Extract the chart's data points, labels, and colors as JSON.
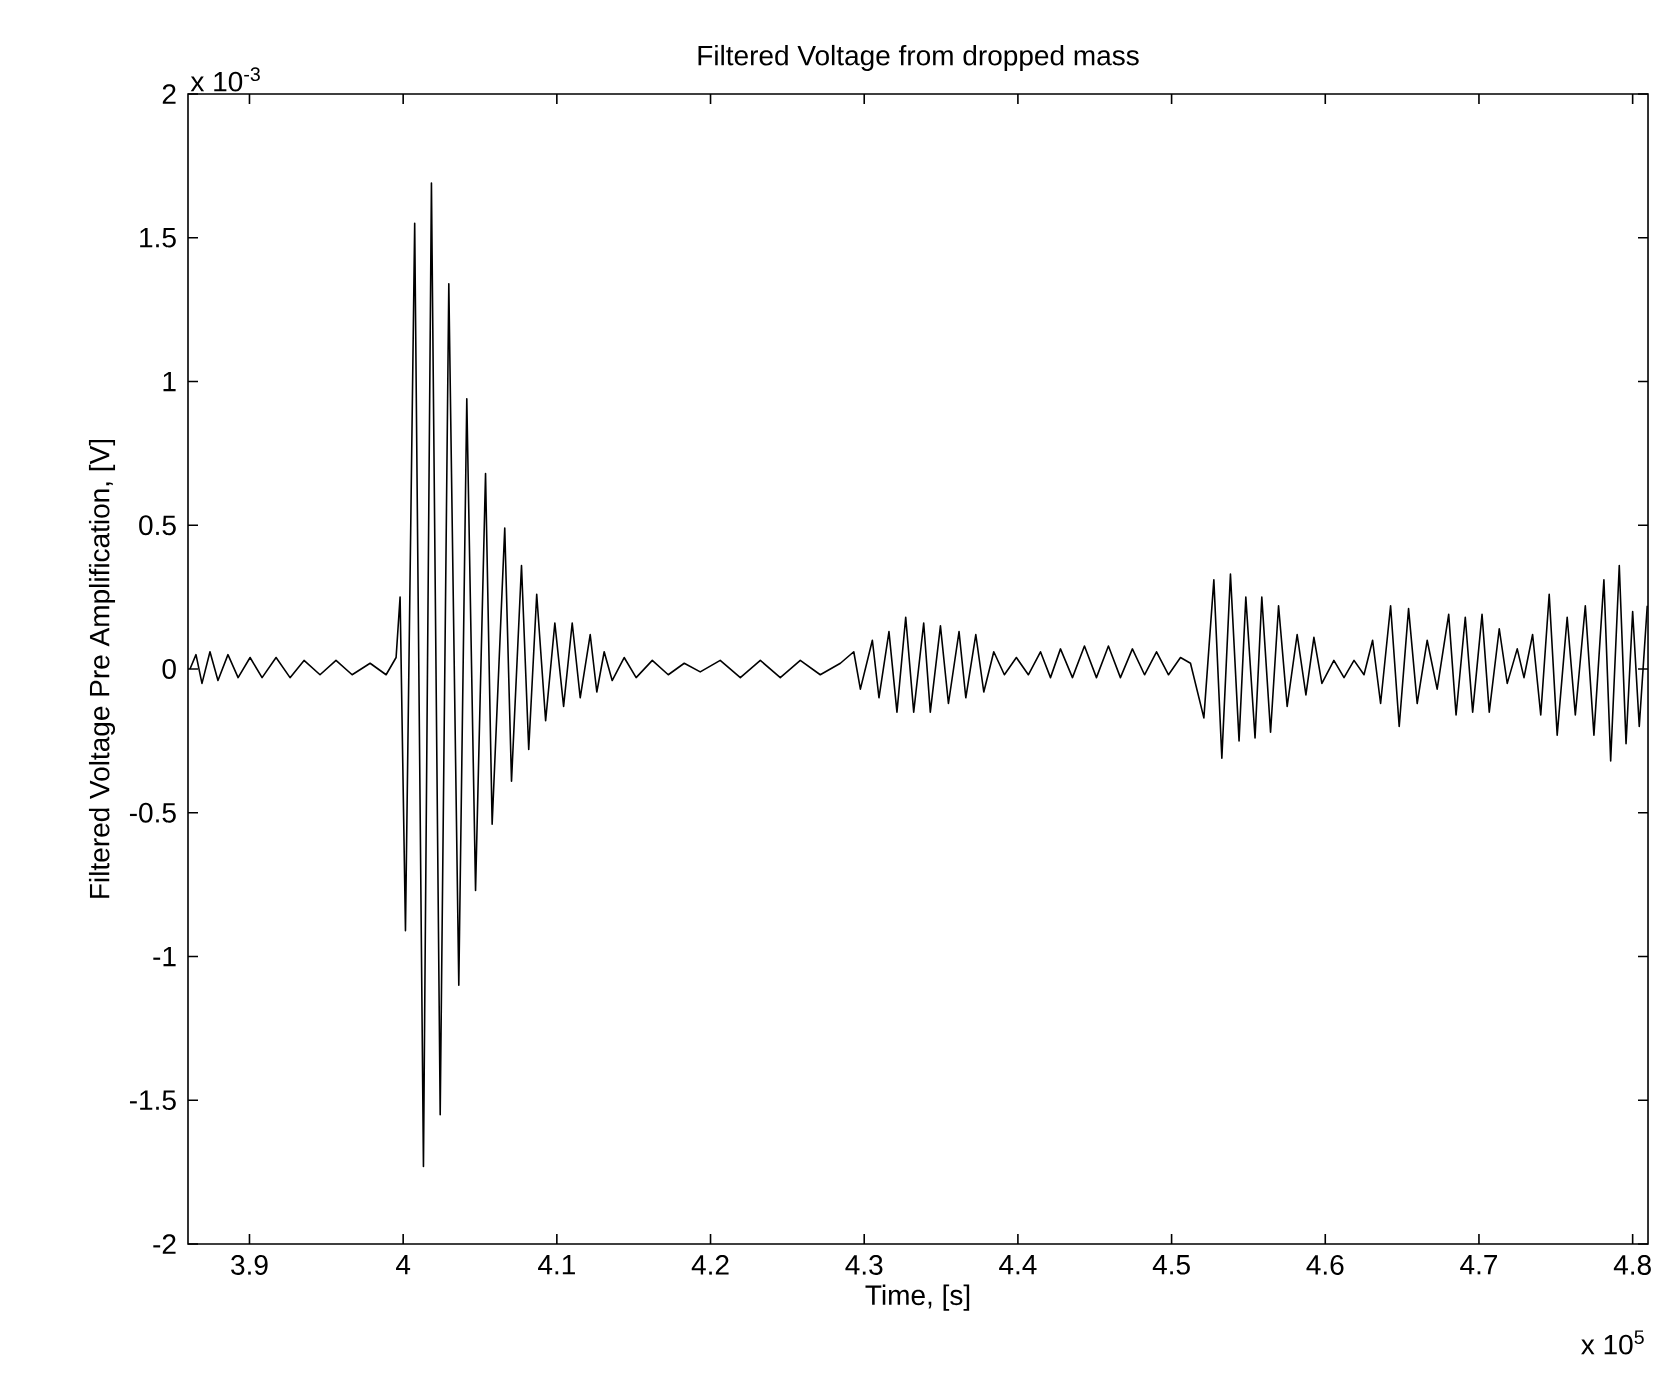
{
  "chart_data": {
    "type": "line",
    "title": "Filtered Voltage from dropped mass",
    "xlabel": "Time, [s]",
    "ylabel": "Filtered Voltage Pre Amplification, [V]",
    "color": "#000000",
    "marker": "none",
    "line_style": "solid",
    "x": [
      3.8613,
      3.8652,
      3.8691,
      3.8743,
      3.8795,
      3.886,
      3.8926,
      3.9004,
      3.9082,
      3.9173,
      3.9264,
      3.9355,
      3.9459,
      3.9563,
      3.9668,
      3.9785,
      3.9889,
      3.9954,
      3.998,
      4.0015,
      4.0075,
      4.0132,
      4.0184,
      4.0241,
      4.0297,
      4.0362,
      4.0414,
      4.0471,
      4.0536,
      4.0579,
      4.0661,
      4.0705,
      4.077,
      4.0817,
      4.0869,
      4.0927,
      4.0987,
      4.1044,
      4.11,
      4.1152,
      4.1217,
      4.126,
      4.1308,
      4.136,
      4.1438,
      4.1516,
      4.1621,
      4.1725,
      4.1829,
      4.1933,
      4.2063,
      4.2194,
      4.2324,
      4.2454,
      4.2584,
      4.2714,
      4.2845,
      4.2932,
      4.2975,
      4.3053,
      4.3096,
      4.3161,
      4.3213,
      4.327,
      4.3322,
      4.3387,
      4.343,
      4.3496,
      4.3548,
      4.3617,
      4.3661,
      4.3726,
      4.3778,
      4.3843,
      4.3912,
      4.399,
      4.4068,
      4.4147,
      4.4212,
      4.4277,
      4.4355,
      4.4433,
      4.4511,
      4.4589,
      4.4667,
      4.4745,
      4.4824,
      4.4902,
      4.498,
      4.5058,
      4.5123,
      4.521,
      4.5275,
      4.5327,
      4.5383,
      4.5439,
      4.5483,
      4.5543,
      4.5587,
      4.5644,
      4.5696,
      4.5752,
      4.5817,
      4.5874,
      4.5926,
      4.5978,
      4.6056,
      4.6122,
      4.6187,
      4.6252,
      4.6308,
      4.636,
      4.6425,
      4.6481,
      4.6542,
      4.6598,
      4.6663,
      4.6728,
      4.6803,
      4.6851,
      4.6911,
      4.6959,
      4.702,
      4.7067,
      4.7132,
      4.7184,
      4.7249,
      4.7293,
      4.7349,
      4.7402,
      4.7457,
      4.7509,
      4.7574,
      4.7627,
      4.7692,
      4.7748,
      4.7813,
      4.7857,
      4.7913,
      4.7957,
      4.8,
      4.8043,
      4.8095
    ],
    "values": [
      0.0,
      0.05,
      -0.05,
      0.06,
      -0.04,
      0.05,
      -0.03,
      0.04,
      -0.03,
      0.04,
      -0.03,
      0.03,
      -0.02,
      0.03,
      -0.02,
      0.02,
      -0.02,
      0.04,
      0.25,
      -0.91,
      1.55,
      -1.73,
      1.69,
      -1.55,
      1.34,
      -1.1,
      0.94,
      -0.77,
      0.68,
      -0.54,
      0.49,
      -0.39,
      0.36,
      -0.28,
      0.26,
      -0.18,
      0.16,
      -0.13,
      0.16,
      -0.1,
      0.12,
      -0.08,
      0.06,
      -0.04,
      0.04,
      -0.03,
      0.03,
      -0.02,
      0.02,
      -0.01,
      0.03,
      -0.03,
      0.03,
      -0.03,
      0.03,
      -0.02,
      0.02,
      0.06,
      -0.07,
      0.1,
      -0.1,
      0.13,
      -0.15,
      0.18,
      -0.15,
      0.16,
      -0.15,
      0.15,
      -0.12,
      0.13,
      -0.1,
      0.12,
      -0.08,
      0.06,
      -0.02,
      0.04,
      -0.02,
      0.06,
      -0.03,
      0.07,
      -0.03,
      0.08,
      -0.03,
      0.08,
      -0.03,
      0.07,
      -0.02,
      0.06,
      -0.02,
      0.04,
      0.02,
      -0.17,
      0.31,
      -0.31,
      0.33,
      -0.25,
      0.25,
      -0.24,
      0.25,
      -0.22,
      0.22,
      -0.13,
      0.12,
      -0.09,
      0.11,
      -0.05,
      0.03,
      -0.03,
      0.03,
      -0.02,
      0.1,
      -0.12,
      0.22,
      -0.2,
      0.21,
      -0.12,
      0.1,
      -0.07,
      0.19,
      -0.16,
      0.18,
      -0.15,
      0.19,
      -0.15,
      0.14,
      -0.05,
      0.07,
      -0.03,
      0.12,
      -0.16,
      0.26,
      -0.23,
      0.18,
      -0.16,
      0.22,
      -0.23,
      0.31,
      -0.32,
      0.36,
      -0.26,
      0.2,
      -0.2,
      0.22
    ],
    "xlim": [
      3.86,
      4.81
    ],
    "ylim": [
      -2,
      2
    ],
    "xticks": [
      3.9,
      4,
      4.1,
      4.2,
      4.3,
      4.4,
      4.5,
      4.6,
      4.7,
      4.8
    ],
    "yticks": [
      -2,
      -1.5,
      -1,
      -0.5,
      0,
      0.5,
      1,
      1.5,
      2
    ],
    "annotations": [
      "x 10$^{-3}$",
      "x 10$^{5}$"
    ]
  }
}
